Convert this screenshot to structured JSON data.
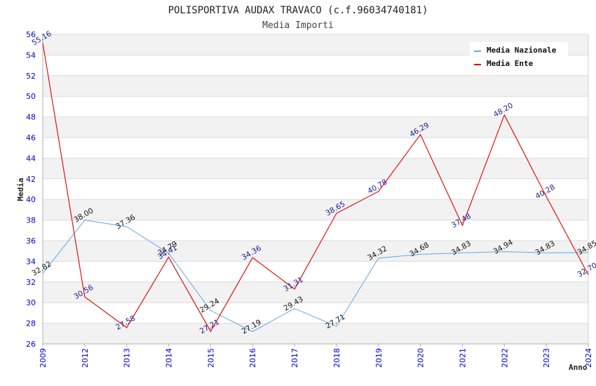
{
  "chart_data": {
    "type": "line",
    "title": "POLISPORTIVA AUDAX TRAVACO (c.f.96034740181)",
    "subtitle": "Media Importi",
    "xlabel": "Anno",
    "ylabel": "Media",
    "ylim": [
      26,
      56
    ],
    "yticks": [
      "26",
      "28",
      "30",
      "32",
      "34",
      "36",
      "38",
      "40",
      "42",
      "44",
      "46",
      "48",
      "50",
      "52",
      "54",
      "56"
    ],
    "categories": [
      "2009",
      "2012",
      "2013",
      "2014",
      "2015",
      "2016",
      "2017",
      "2018",
      "2019",
      "2020",
      "2021",
      "2022",
      "2023",
      "2024"
    ],
    "series": [
      {
        "name": "Media Nazionale",
        "color": "#5fa8e8",
        "values": [
          32.82,
          38.0,
          37.36,
          34.79,
          29.24,
          27.19,
          29.43,
          27.71,
          34.32,
          34.68,
          34.83,
          34.94,
          34.83,
          34.85
        ],
        "labels": [
          "32.82",
          "38.00",
          "37.36",
          "34.79",
          "29.24",
          "27.19",
          "29.43",
          "27.71",
          "34.32",
          "34.68",
          "34.83",
          "34.94",
          "34.83",
          "34.85"
        ]
      },
      {
        "name": "Media Ente",
        "color": "#e00000",
        "values": [
          55.16,
          30.56,
          27.58,
          34.41,
          27.21,
          34.36,
          31.31,
          38.65,
          40.78,
          46.29,
          37.48,
          48.2,
          40.28,
          32.7
        ],
        "labels": [
          "55.16",
          "30.56",
          "27.58",
          "34.41",
          "27.21",
          "34.36",
          "31.31",
          "38.65",
          "40.78",
          "46.29",
          "37.48",
          "48.20",
          "40.28",
          "32.70"
        ]
      }
    ],
    "legend_position": "top-right",
    "grid": true
  }
}
